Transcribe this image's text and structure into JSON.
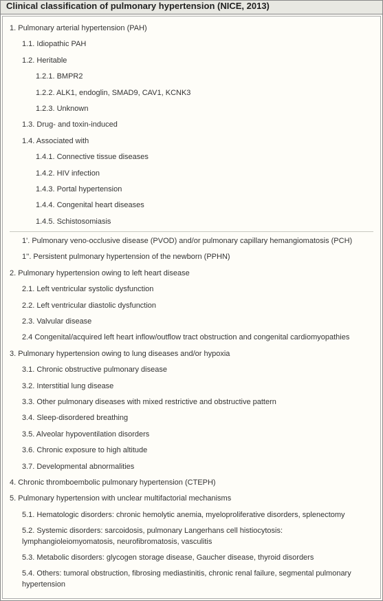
{
  "title": "Clinical classification of pulmonary hypertension (NICE, 2013)",
  "colors": {
    "page_bg": "#f5f5f0",
    "panel_bg": "#fdfcf7",
    "header_bg": "#e8e8e2",
    "border": "#888888",
    "text": "#333333",
    "separator": "#c8c8c0"
  },
  "typography": {
    "header_fontsize": 13,
    "item_fontsize": 11,
    "font_family": "Verdana, Geneva, sans-serif"
  },
  "items": [
    {
      "level": 0,
      "text": "1. Pulmonary arterial hypertension (PAH)"
    },
    {
      "level": 1,
      "text": "1.1. Idiopathic PAH"
    },
    {
      "level": 1,
      "text": "1.2. Heritable"
    },
    {
      "level": 2,
      "text": "1.2.1. BMPR2"
    },
    {
      "level": 2,
      "text": "1.2.2. ALK1, endoglin, SMAD9, CAV1, KCNK3"
    },
    {
      "level": 2,
      "text": "1.2.3. Unknown"
    },
    {
      "level": 1,
      "text": "1.3. Drug- and toxin-induced"
    },
    {
      "level": 1,
      "text": "1.4. Associated with"
    },
    {
      "level": 2,
      "text": "1.4.1. Connective tissue diseases"
    },
    {
      "level": 2,
      "text": "1.4.2. HIV infection"
    },
    {
      "level": 2,
      "text": "1.4.3. Portal hypertension"
    },
    {
      "level": 2,
      "text": "1.4.4. Congenital heart diseases"
    },
    {
      "level": 2,
      "text": "1.4.5. Schistosomiasis"
    },
    {
      "separator": true
    },
    {
      "level": 1,
      "text": "1'. Pulmonary veno-occlusive disease (PVOD) and/or pulmonary capillary hemangiomatosis (PCH)"
    },
    {
      "level": 1,
      "text": "1''. Persistent pulmonary hypertension of the newborn (PPHN)"
    },
    {
      "level": 0,
      "text": "2. Pulmonary hypertension owing to left heart disease"
    },
    {
      "level": 1,
      "text": "2.1. Left ventricular systolic dysfunction"
    },
    {
      "level": 1,
      "text": "2.2. Left ventricular diastolic dysfunction"
    },
    {
      "level": 1,
      "text": "2.3. Valvular disease"
    },
    {
      "level": 1,
      "text": "2.4 Congenital/acquired left heart inflow/outflow tract obstruction and congenital cardiomyopathies"
    },
    {
      "level": 0,
      "text": "3. Pulmonary hypertension owing to lung diseases and/or hypoxia"
    },
    {
      "level": 1,
      "text": "3.1. Chronic obstructive pulmonary disease"
    },
    {
      "level": 1,
      "text": "3.2. Interstitial lung disease"
    },
    {
      "level": 1,
      "text": "3.3. Other pulmonary diseases with mixed restrictive and obstructive pattern"
    },
    {
      "level": 1,
      "text": "3.4. Sleep-disordered breathing"
    },
    {
      "level": 1,
      "text": "3.5. Alveolar hypoventilation disorders"
    },
    {
      "level": 1,
      "text": "3.6. Chronic exposure to high altitude"
    },
    {
      "level": 1,
      "text": "3.7. Developmental abnormalities"
    },
    {
      "level": 0,
      "text": "4. Chronic thromboembolic pulmonary hypertension (CTEPH)"
    },
    {
      "level": 0,
      "text": "5. Pulmonary hypertension with unclear multifactorial mechanisms"
    },
    {
      "level": 1,
      "text": "5.1. Hematologic disorders: chronic hemolytic anemia, myeloproliferative disorders, splenectomy"
    },
    {
      "level": 1,
      "text": "5.2. Systemic disorders: sarcoidosis, pulmonary Langerhans cell histiocytosis: lymphangioleiomyomatosis, neurofibromatosis, vasculitis"
    },
    {
      "level": 1,
      "text": "5.3. Metabolic disorders: glycogen storage disease, Gaucher disease, thyroid disorders"
    },
    {
      "level": 1,
      "text": "5.4. Others: tumoral obstruction, fibrosing mediastinitis, chronic renal failure, segmental pulmonary hypertension"
    }
  ]
}
